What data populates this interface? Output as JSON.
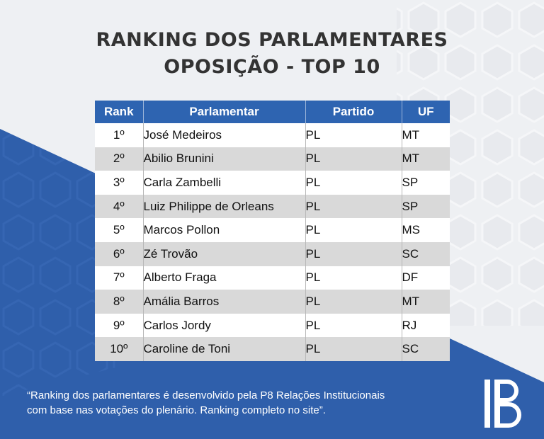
{
  "title": {
    "line1": "RANKING DOS PARLAMENTARES",
    "line2": "OPOSIÇÃO - TOP 10"
  },
  "table": {
    "headers": [
      "Rank",
      "Parlamentar",
      "Partido",
      "UF"
    ],
    "rows": [
      {
        "rank": "1º",
        "name": "José Medeiros",
        "party": "PL",
        "uf": "MT"
      },
      {
        "rank": "2º",
        "name": "Abilio Brunini",
        "party": "PL",
        "uf": "MT"
      },
      {
        "rank": "3º",
        "name": "Carla Zambelli",
        "party": "PL",
        "uf": "SP"
      },
      {
        "rank": "4º",
        "name": "Luiz Philippe de Orleans",
        "party": "PL",
        "uf": "SP"
      },
      {
        "rank": "5º",
        "name": "Marcos Pollon",
        "party": "PL",
        "uf": "MS"
      },
      {
        "rank": "6º",
        "name": "Zé Trovão",
        "party": "PL",
        "uf": "SC"
      },
      {
        "rank": "7º",
        "name": "Alberto Fraga",
        "party": "PL",
        "uf": "DF"
      },
      {
        "rank": "8º",
        "name": "Amália Barros",
        "party": "PL",
        "uf": "MT"
      },
      {
        "rank": "9º",
        "name": "Carlos Jordy",
        "party": "PL",
        "uf": "RJ"
      },
      {
        "rank": "10º",
        "name": "Caroline de Toni",
        "party": "PL",
        "uf": "SC"
      }
    ]
  },
  "footnote": {
    "line1": "“Ranking dos parlamentares é desenvolvido pela P8 Relações Institucionais",
    "line2": "com base nas votações do plenário. Ranking completo no site”."
  },
  "logo": {
    "icon": "p8-logo-icon"
  },
  "colors": {
    "header_blue": "#2e64b1",
    "background_blue": "#2f5fab",
    "background_light": "#eef0f3",
    "title_text": "#333333",
    "row_alt": "#d9d9d9"
  }
}
